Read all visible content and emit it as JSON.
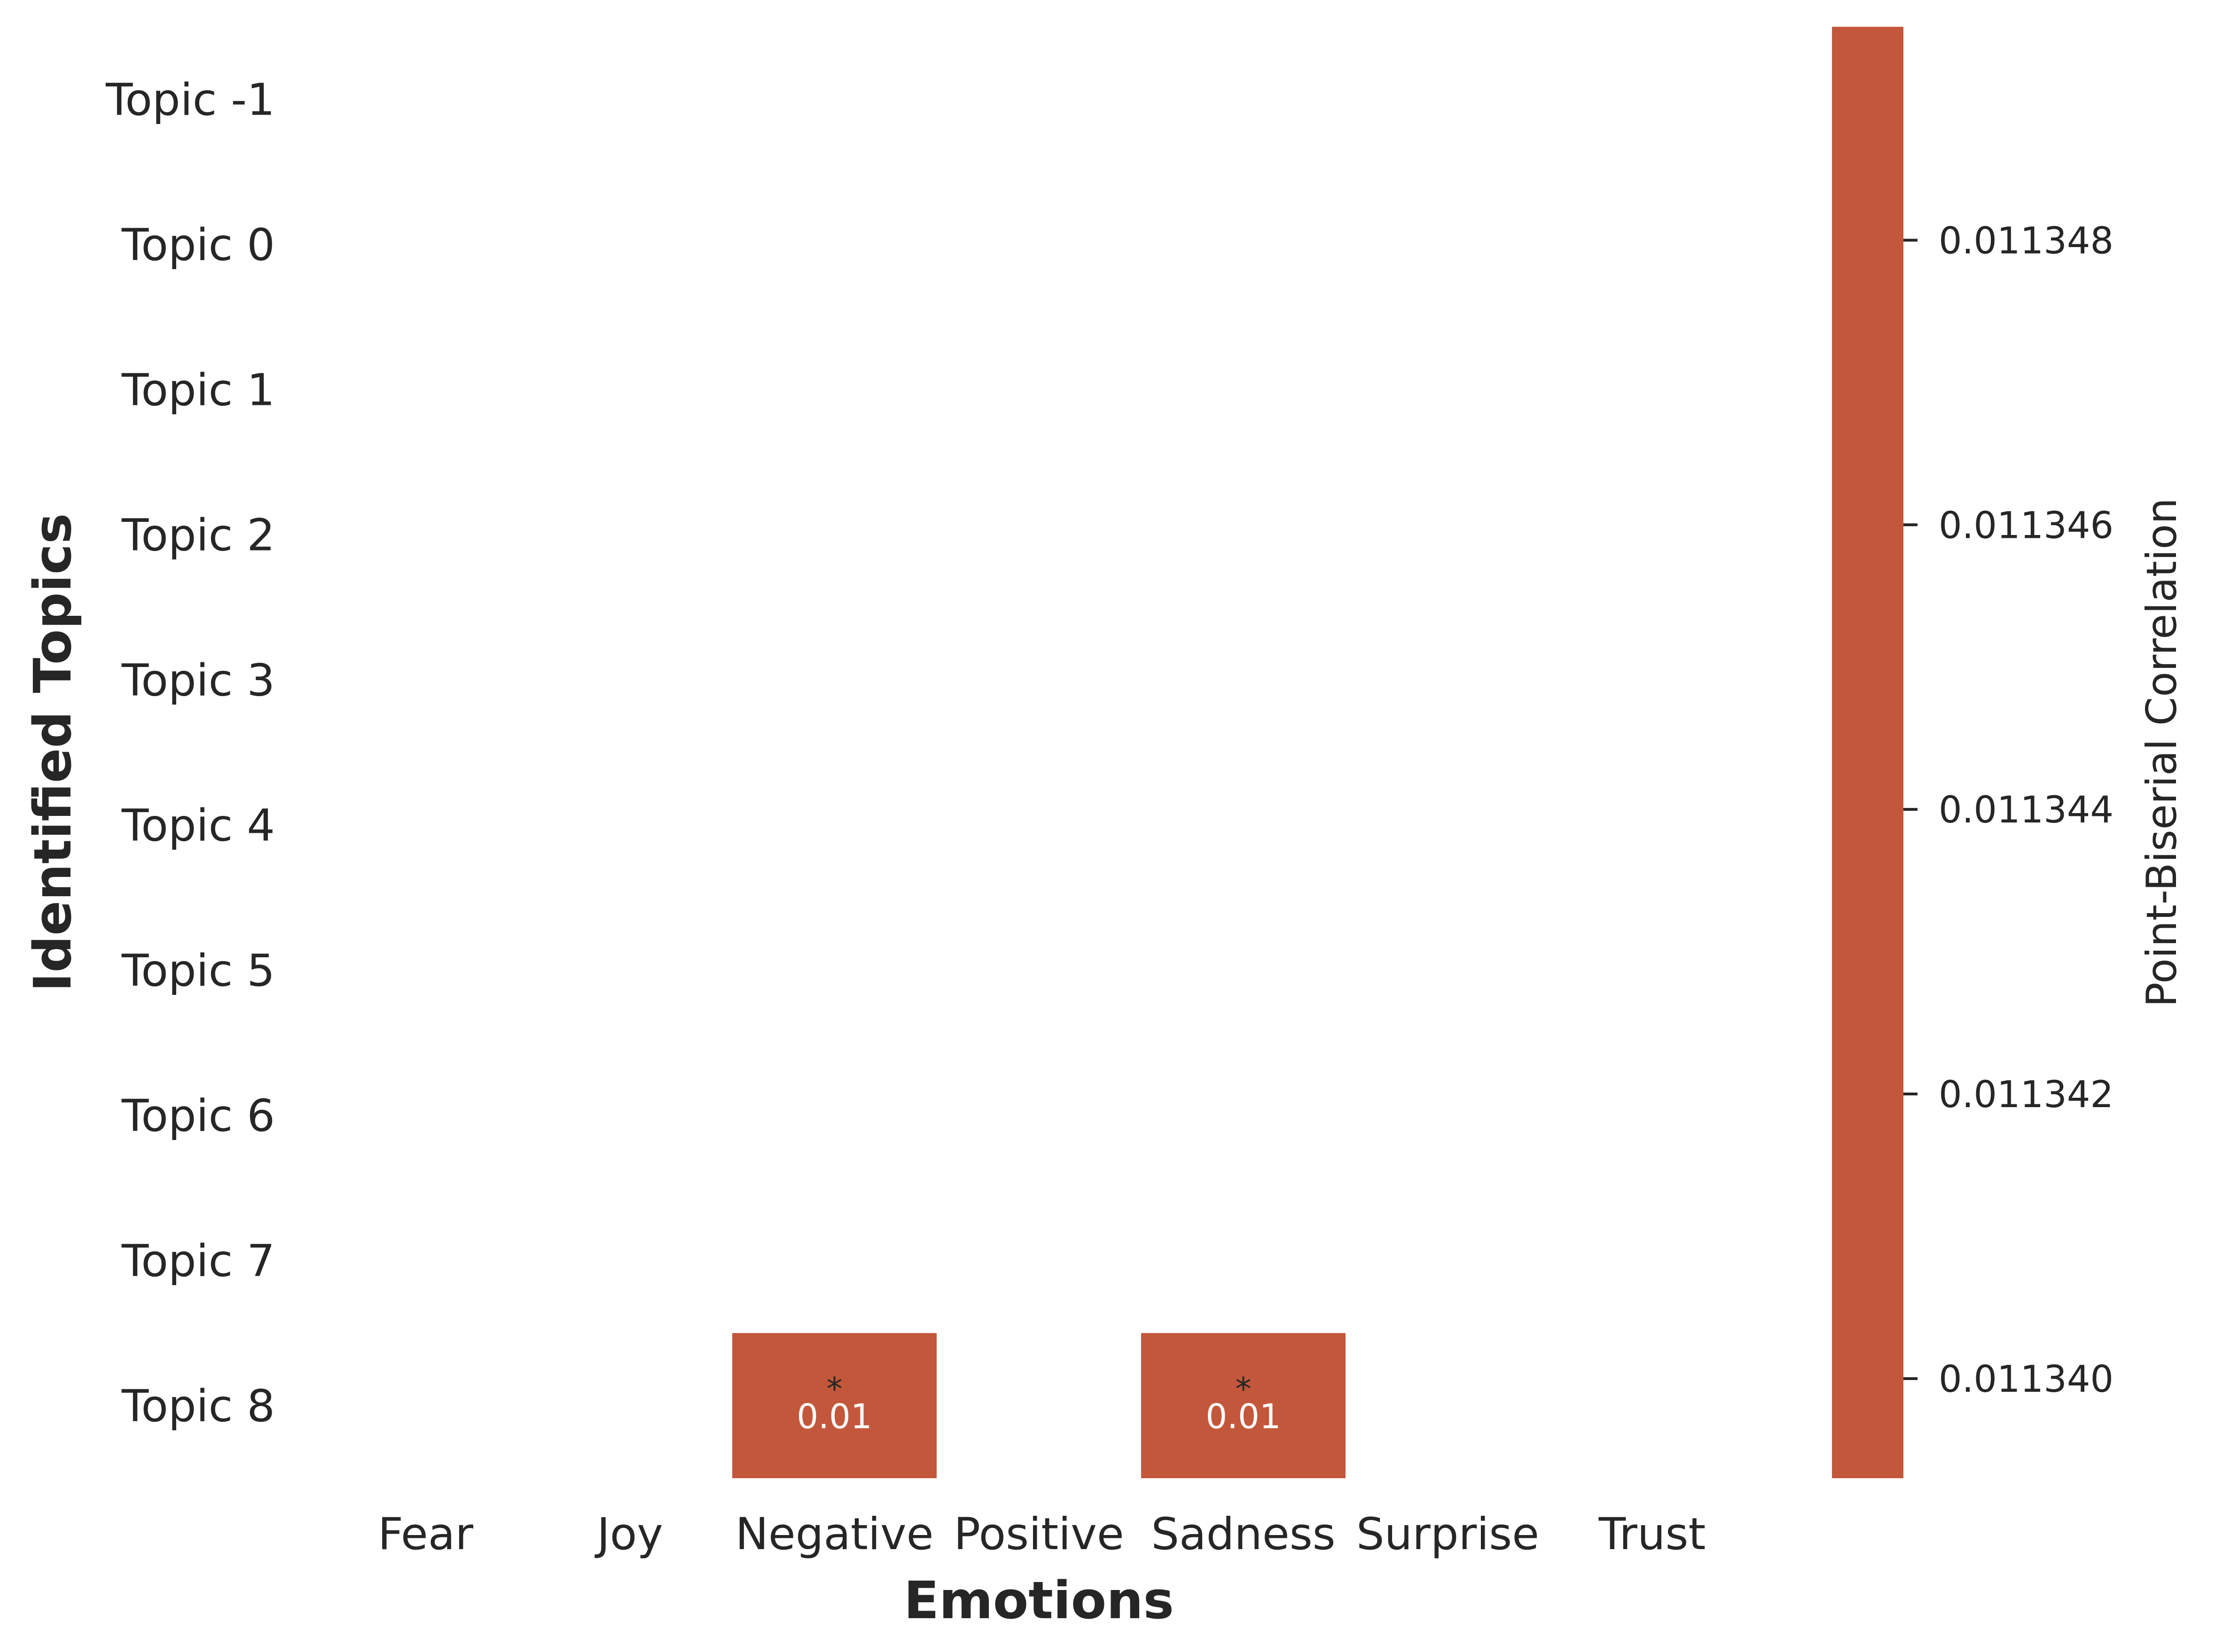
{
  "chart_data": {
    "type": "heatmap",
    "xlabel": "Emotions",
    "ylabel": "Identified Topics",
    "x_categories": [
      "Fear",
      "Joy",
      "Negative",
      "Positive",
      "Sadness",
      "Surprise",
      "Trust"
    ],
    "y_categories": [
      "Topic -1",
      "Topic 0",
      "Topic 1",
      "Topic 2",
      "Topic 3",
      "Topic 4",
      "Topic 5",
      "Topic 6",
      "Topic 7",
      "Topic 8"
    ],
    "cells": [
      {
        "topic": "Topic 8",
        "emotion": "Negative",
        "value": 0.01134,
        "label": "0.01",
        "significance": "*"
      },
      {
        "topic": "Topic 8",
        "emotion": "Sadness",
        "value": 0.01134,
        "label": "0.01",
        "significance": "*"
      }
    ],
    "colorbar": {
      "title": "Point-Biserial Correlation",
      "ticks": [
        0.01134,
        0.011342,
        0.011344,
        0.011346,
        0.011348
      ],
      "tick_labels": [
        "0.011340",
        "0.011342",
        "0.011344",
        "0.011346",
        "0.011348"
      ],
      "range": [
        0.0113393,
        0.0113495
      ],
      "color": "#c3573b"
    },
    "grid": false
  }
}
